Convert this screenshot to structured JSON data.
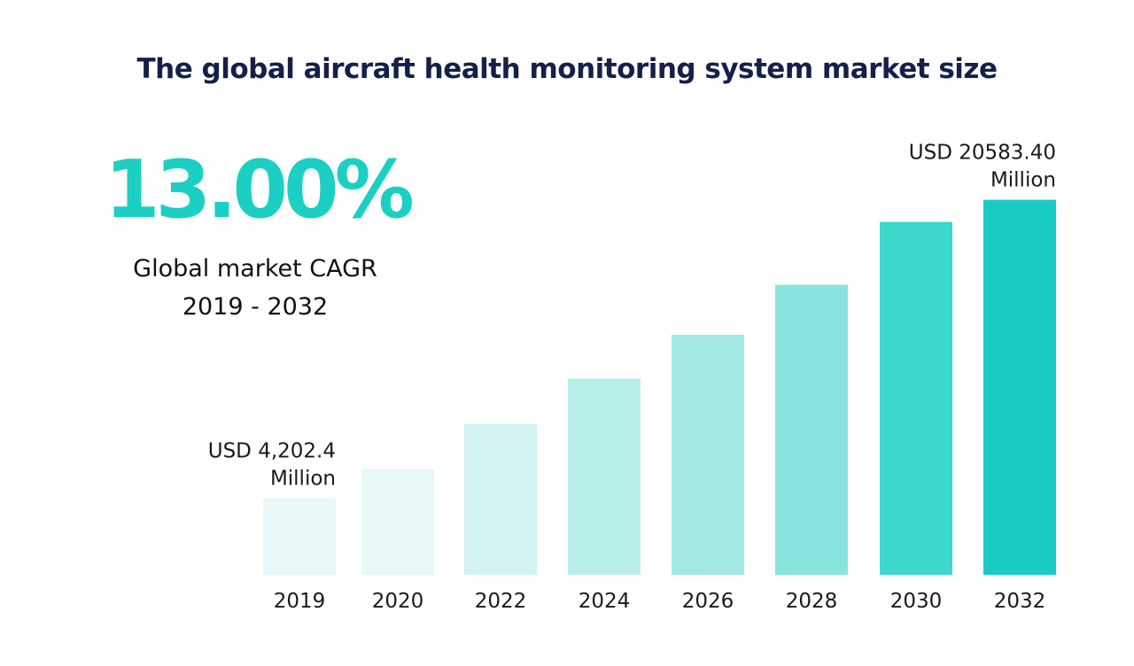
{
  "title": "The global aircraft health monitoring system market size",
  "cagr": {
    "value": "13.00%",
    "label_line1": "Global market CAGR",
    "label_line2": "2019 - 2032"
  },
  "colors": {
    "title": "#14204a",
    "accent": "#1ccfc3",
    "bars": [
      "#e6f8f7",
      "#e6f8f7",
      "#d2f3f1",
      "#b8eeea",
      "#a2e9e4",
      "#8ae4de",
      "#3cd7cd",
      "#18cbc2"
    ]
  },
  "chart_data": {
    "type": "bar",
    "title": "The global aircraft health monitoring system market size",
    "xlabel": "",
    "ylabel": "",
    "units": "USD Million",
    "categories": [
      "2019",
      "2020",
      "2022",
      "2024",
      "2026",
      "2028",
      "2030",
      "2032"
    ],
    "values": [
      4202.4,
      5790,
      8280,
      10770,
      13180,
      15920,
      19370,
      20583.4
    ],
    "ylim": [
      0,
      21000
    ],
    "grid": false,
    "annotations": [
      {
        "category": "2019",
        "line1": "USD 4,202.4",
        "line2": "Million"
      },
      {
        "category": "2032",
        "line1": "USD 20583.40",
        "line2": "Million"
      }
    ]
  }
}
